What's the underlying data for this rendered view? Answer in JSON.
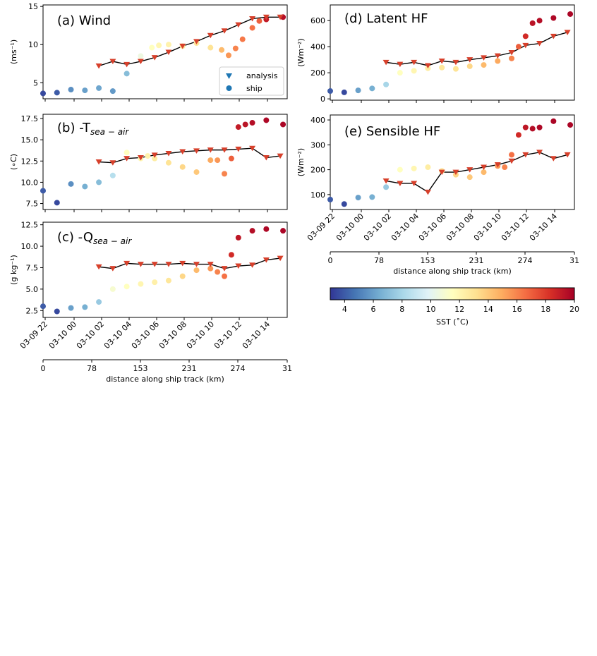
{
  "figure": {
    "legend": {
      "analysis": "analysis",
      "ship": "ship"
    },
    "colorbar": {
      "label": "SST (˚C)",
      "min": 3,
      "max": 20,
      "ticks": [
        "4",
        "6",
        "8",
        "10",
        "12",
        "14",
        "16",
        "18",
        "20"
      ]
    },
    "time_ticks": [
      "03-09 22",
      "03-10 00",
      "03-10 02",
      "03-10 04",
      "03-10 06",
      "03-10 08",
      "03-10 10",
      "03-10 12",
      "03-10 14"
    ],
    "distance_ticks": [
      "0",
      "78",
      "153",
      "231",
      "274",
      "31"
    ],
    "xlabel": "distance along ship track (km)",
    "colors": {
      "analysis_marker": "#d7402b",
      "line": "#000000"
    }
  },
  "chart_data": [
    {
      "id": "a",
      "type": "scatter",
      "title": "(a) Wind",
      "ylabel": "(ms⁻¹)",
      "ylim": [
        2.9,
        15.2
      ],
      "yticks": [
        "5",
        "10",
        "15"
      ],
      "ytick_values": [
        5,
        10,
        15
      ],
      "xlim": [
        0,
        17.5
      ],
      "show_time_ticks": false,
      "show_distance_ticks": false,
      "ship": {
        "x": [
          0,
          1,
          2,
          3,
          4,
          5,
          6,
          7,
          7.8,
          8.3,
          9,
          10,
          11,
          12,
          12.8,
          13.3,
          13.8,
          14.3,
          15,
          15.5,
          16,
          17.2
        ],
        "y": [
          3.6,
          3.7,
          4.1,
          4.0,
          4.3,
          3.9,
          6.2,
          8.5,
          9.6,
          9.9,
          10.0,
          9.8,
          10.2,
          9.6,
          9.3,
          8.6,
          9.5,
          10.7,
          12.2,
          13.1,
          13.3,
          13.6
        ]
      },
      "ship_sst": [
        3.5,
        4,
        5.5,
        6,
        6.2,
        5.8,
        7,
        10.5,
        11.5,
        12,
        12.2,
        12.5,
        12.8,
        13,
        14.5,
        15.5,
        16,
        16.3,
        16.5,
        17,
        19,
        19.5
      ],
      "analysis": {
        "x": [
          4,
          5,
          6,
          7,
          8,
          9,
          10,
          11,
          12,
          13,
          14,
          15,
          16,
          17
        ],
        "y": [
          7.2,
          7.8,
          7.4,
          7.8,
          8.3,
          9.0,
          9.8,
          10.4,
          11.2,
          11.8,
          12.6,
          13.4,
          13.6,
          13.6
        ]
      }
    },
    {
      "id": "b",
      "type": "scatter",
      "title": "(b) -T",
      "title_sub": "sea − air",
      "ylabel": "(∘C)",
      "ylim": [
        6.8,
        18.0
      ],
      "yticks": [
        "7.5",
        "10.0",
        "12.5",
        "15.0",
        "17.5"
      ],
      "ytick_values": [
        7.5,
        10.0,
        12.5,
        15.0,
        17.5
      ],
      "xlim": [
        0,
        17.5
      ],
      "show_time_ticks": false,
      "show_distance_ticks": false,
      "ship": {
        "x": [
          0,
          1,
          2,
          3,
          4,
          5,
          6,
          7,
          7.5,
          8,
          9,
          10,
          11,
          12,
          12.5,
          13,
          13.5,
          14,
          14.5,
          15,
          16,
          17.2
        ],
        "y": [
          9.0,
          7.6,
          9.8,
          9.5,
          10.0,
          10.8,
          13.5,
          12.8,
          13.1,
          12.8,
          12.3,
          11.8,
          11.2,
          12.6,
          12.6,
          11.0,
          12.8,
          16.5,
          16.8,
          17.0,
          17.3,
          16.8
        ]
      },
      "ship_sst": [
        4,
        3.5,
        5.5,
        6.5,
        7,
        8.5,
        11.5,
        12,
        12.2,
        12.5,
        13,
        13.5,
        14,
        15,
        15.5,
        16,
        17,
        19,
        19.3,
        19.5,
        19.7,
        19.8
      ],
      "analysis": {
        "x": [
          4,
          5,
          6,
          7,
          8,
          9,
          10,
          11,
          12,
          13,
          14,
          15,
          16,
          17
        ],
        "y": [
          12.4,
          12.3,
          12.8,
          12.9,
          13.2,
          13.4,
          13.6,
          13.7,
          13.8,
          13.8,
          13.9,
          14.0,
          12.9,
          13.1
        ]
      }
    },
    {
      "id": "c",
      "type": "scatter",
      "title": "(c) -Q",
      "title_sub": "sea − air",
      "ylabel": "(g kg⁻¹)",
      "ylim": [
        1.7,
        12.8
      ],
      "yticks": [
        "2.5",
        "5.0",
        "7.5",
        "10.0",
        "12.5"
      ],
      "ytick_values": [
        2.5,
        5.0,
        7.5,
        10.0,
        12.5
      ],
      "xlim": [
        0,
        17.5
      ],
      "show_time_ticks": true,
      "show_distance_ticks": true,
      "ship": {
        "x": [
          0,
          1,
          2,
          3,
          4,
          5,
          6,
          7,
          8,
          9,
          10,
          11,
          12,
          12.5,
          13,
          13.5,
          14,
          15,
          16,
          17.2
        ],
        "y": [
          3.0,
          2.4,
          2.8,
          2.9,
          3.5,
          5.0,
          5.3,
          5.6,
          5.8,
          6.0,
          6.5,
          7.2,
          7.4,
          7.0,
          6.5,
          9.0,
          11.0,
          11.8,
          12.0,
          11.8
        ]
      },
      "ship_sst": [
        4,
        3.5,
        6,
        6.5,
        7.5,
        11,
        11.5,
        12,
        12.3,
        12.8,
        13.5,
        14.5,
        15.5,
        16,
        16.5,
        18.5,
        19.2,
        19.5,
        19.7,
        19.8
      ],
      "analysis": {
        "x": [
          4,
          5,
          6,
          7,
          8,
          9,
          10,
          11,
          12,
          13,
          14,
          15,
          16,
          17
        ],
        "y": [
          7.6,
          7.4,
          8.0,
          7.9,
          7.9,
          7.9,
          8.0,
          7.9,
          7.9,
          7.4,
          7.7,
          7.8,
          8.4,
          8.6
        ]
      }
    },
    {
      "id": "d",
      "type": "scatter",
      "title": "(d) Latent HF",
      "ylabel": "(Wm⁻²)",
      "ylim": [
        -10,
        720
      ],
      "yticks": [
        "0",
        "200",
        "400",
        "600"
      ],
      "ytick_values": [
        0,
        200,
        400,
        600
      ],
      "xlim": [
        0,
        17.5
      ],
      "show_time_ticks": false,
      "show_distance_ticks": false,
      "ship": {
        "x": [
          0,
          1,
          2,
          3,
          4,
          5,
          6,
          7,
          8,
          9,
          10,
          11,
          12,
          13,
          13.5,
          14,
          14.5,
          15,
          16,
          17.2
        ],
        "y": [
          60,
          50,
          65,
          80,
          110,
          200,
          215,
          235,
          240,
          230,
          250,
          260,
          290,
          310,
          400,
          480,
          580,
          600,
          620,
          650
        ]
      },
      "ship_sst": [
        4,
        3.5,
        6,
        6.5,
        8,
        11.5,
        12,
        12.5,
        12.8,
        13,
        13.5,
        14.5,
        15,
        16,
        17,
        18.5,
        19.3,
        19.5,
        19.7,
        19.8
      ],
      "analysis": {
        "x": [
          4,
          5,
          6,
          7,
          8,
          9,
          10,
          11,
          12,
          13,
          14,
          15,
          16,
          17
        ],
        "y": [
          280,
          265,
          280,
          255,
          290,
          280,
          300,
          315,
          330,
          355,
          410,
          425,
          480,
          510
        ]
      }
    },
    {
      "id": "e",
      "type": "scatter",
      "title": "(e) Sensible HF",
      "ylabel": "(Wm⁻²)",
      "ylim": [
        40,
        420
      ],
      "yticks": [
        "100",
        "200",
        "300",
        "400"
      ],
      "ytick_values": [
        100,
        200,
        300,
        400
      ],
      "xlim": [
        0,
        17.5
      ],
      "show_time_ticks": true,
      "show_distance_ticks": true,
      "ship": {
        "x": [
          0,
          1,
          2,
          3,
          4,
          5,
          6,
          7,
          8,
          9,
          10,
          11,
          12,
          12.5,
          13,
          13.5,
          14,
          14.5,
          15,
          16,
          17.2
        ],
        "y": [
          80,
          62,
          88,
          90,
          130,
          200,
          205,
          210,
          195,
          180,
          170,
          190,
          215,
          210,
          260,
          340,
          370,
          365,
          370,
          395,
          380
        ]
      },
      "ship_sst": [
        4,
        3.5,
        6,
        6.5,
        7.5,
        11.5,
        12,
        12.5,
        13,
        13.5,
        14,
        14.5,
        15.5,
        16,
        16.5,
        18.5,
        19.2,
        19.5,
        19.7,
        19.8,
        19.8
      ],
      "analysis": {
        "x": [
          4,
          5,
          6,
          7,
          8,
          9,
          10,
          11,
          12,
          13,
          14,
          15,
          16,
          17
        ],
        "y": [
          155,
          145,
          145,
          110,
          190,
          190,
          200,
          210,
          220,
          235,
          260,
          270,
          245,
          260
        ]
      }
    }
  ]
}
